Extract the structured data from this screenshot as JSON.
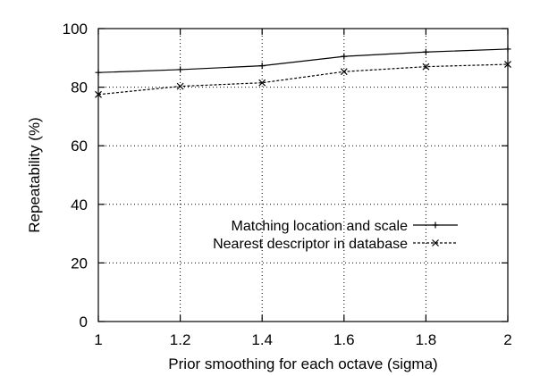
{
  "chart_data": {
    "type": "line",
    "title": "",
    "xlabel": "Prior smoothing for each octave (sigma)",
    "ylabel": "Repeatability (%)",
    "xlim": [
      1,
      2
    ],
    "ylim": [
      0,
      100
    ],
    "grid": true,
    "legend_position": "right-middle",
    "x_ticks": [
      "1",
      "1.2",
      "1.4",
      "1.6",
      "1.8",
      "2"
    ],
    "y_ticks": [
      "0",
      "20",
      "40",
      "60",
      "80",
      "100"
    ],
    "x": [
      1.0,
      1.2,
      1.4,
      1.6,
      1.8,
      2.0
    ],
    "series": [
      {
        "name": "Matching location and scale",
        "marker": "plus",
        "line_style": "solid",
        "values": [
          85.0,
          86.0,
          87.3,
          90.5,
          92.0,
          93.0
        ]
      },
      {
        "name": "Nearest descriptor in database",
        "marker": "cross",
        "line_style": "dashed",
        "values": [
          77.5,
          80.3,
          81.5,
          85.3,
          87.0,
          87.8
        ]
      }
    ]
  },
  "colors": {
    "line": "#000000",
    "background": "#ffffff"
  }
}
